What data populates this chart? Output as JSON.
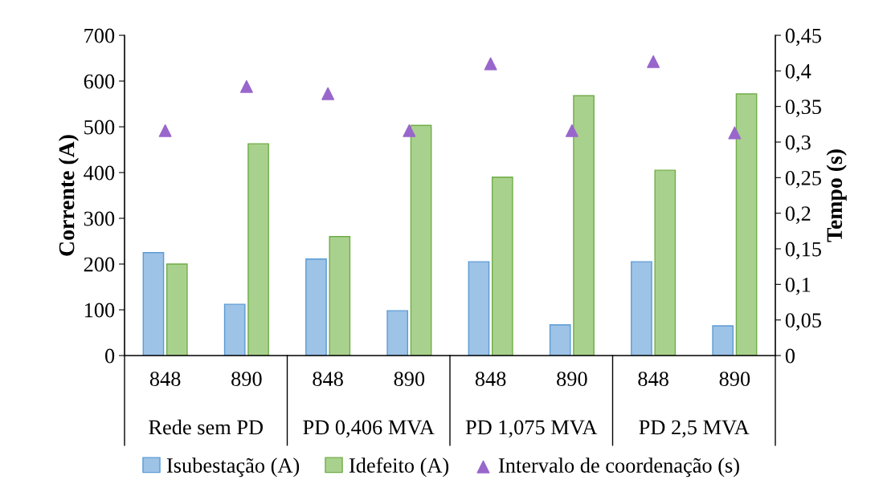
{
  "chart_data": {
    "type": "bar",
    "ylabel": "Corrente (A)",
    "y2label": "Tempo (s)",
    "categories": [
      "848",
      "890",
      "848",
      "890",
      "848",
      "890",
      "848",
      "890"
    ],
    "annotations": [
      "Rede sem PD",
      "PD 0,406 MVA",
      "PD 1,075 MVA",
      "PD 2,5 MVA"
    ],
    "series": [
      {
        "name": "Isubestação (A)",
        "color": "#9dc3e6",
        "values": [
          225,
          112,
          211,
          98,
          205,
          67,
          205,
          65
        ]
      },
      {
        "name": "Idefeito (A)",
        "color": "#a9d18e",
        "values": [
          200,
          463,
          260,
          503,
          390,
          568,
          405,
          572
        ]
      },
      {
        "name": "Intervalo de coordenação (s)",
        "type": "scatter",
        "axis": "y2",
        "color": "#9966cc",
        "marker": "triangle",
        "values": [
          0.316,
          0.378,
          0.368,
          0.316,
          0.41,
          0.316,
          0.413,
          0.313
        ]
      }
    ],
    "ylim": [
      0,
      700
    ],
    "yticks": [
      0,
      100,
      200,
      300,
      400,
      500,
      600,
      700
    ],
    "y2lim": [
      0,
      0.45
    ],
    "y2ticks": [
      0,
      {
        "value": 0.05,
        "label": "0,05"
      },
      {
        "value": 0.1,
        "label": "0,1"
      },
      {
        "value": 0.15,
        "label": "0,15"
      },
      {
        "value": 0.2,
        "label": "0,2"
      },
      {
        "value": 0.25,
        "label": "0,25"
      },
      {
        "value": 0.3,
        "label": "0,3"
      },
      {
        "value": 0.35,
        "label": "0,35"
      },
      {
        "value": 0.4,
        "label": "0,4"
      },
      {
        "value": 0.45,
        "label": "0,45"
      }
    ],
    "legend": "bottom",
    "grid": false
  }
}
